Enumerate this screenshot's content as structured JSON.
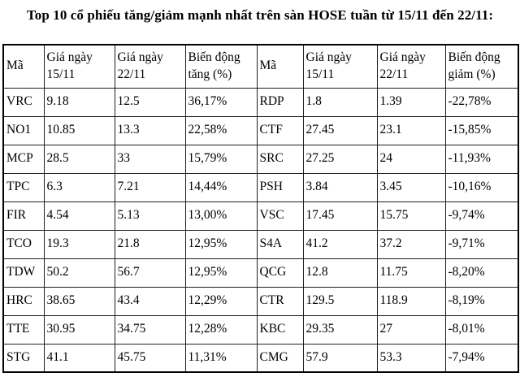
{
  "title": "Top 10 cổ phiếu tăng/giảm mạnh nhất trên sàn HOSE tuần từ 15/11 đến 22/11:",
  "chart_data": {
    "type": "table",
    "title": "Top 10 cổ phiếu tăng/giảm mạnh nhất trên sàn HOSE tuần từ 15/11 đến 22/11:",
    "headers": [
      "Mã",
      "Giá ngày 15/11",
      "Giá ngày 22/11",
      "Biến động tăng (%)",
      "Mã",
      "Giá ngày 15/11",
      "Giá ngày 22/11",
      "Biến động giảm (%)"
    ],
    "rows": [
      [
        "VRC",
        "9.18",
        "12.5",
        "36,17%",
        "RDP",
        "1.8",
        "1.39",
        "-22,78%"
      ],
      [
        "NO1",
        "10.85",
        "13.3",
        "22,58%",
        "CTF",
        "27.45",
        "23.1",
        "-15,85%"
      ],
      [
        "MCP",
        "28.5",
        "33",
        "15,79%",
        "SRC",
        "27.25",
        "24",
        "-11,93%"
      ],
      [
        "TPC",
        "6.3",
        "7.21",
        "14,44%",
        "PSH",
        "3.84",
        "3.45",
        "-10,16%"
      ],
      [
        "FIR",
        "4.54",
        "5.13",
        "13,00%",
        "VSC",
        "17.45",
        "15.75",
        "-9,74%"
      ],
      [
        "TCO",
        "19.3",
        "21.8",
        "12,95%",
        "S4A",
        "41.2",
        "37.2",
        "-9,71%"
      ],
      [
        "TDW",
        "50.2",
        "56.7",
        "12,95%",
        "QCG",
        "12.8",
        "11.75",
        "-8,20%"
      ],
      [
        "HRC",
        "38.65",
        "43.4",
        "12,29%",
        "CTR",
        "129.5",
        "118.9",
        "-8,19%"
      ],
      [
        "TTE",
        "30.95",
        "34.75",
        "12,28%",
        "KBC",
        "29.35",
        "27",
        "-8,01%"
      ],
      [
        "STG",
        "41.1",
        "45.75",
        "11,31%",
        "CMG",
        "57.9",
        "53.3",
        "-7,94%"
      ]
    ],
    "layout": {
      "left_section": "top gainers",
      "right_section": "top losers",
      "border_color": "#000000",
      "text_color": "#000000",
      "background_color": "#ffffff"
    }
  }
}
